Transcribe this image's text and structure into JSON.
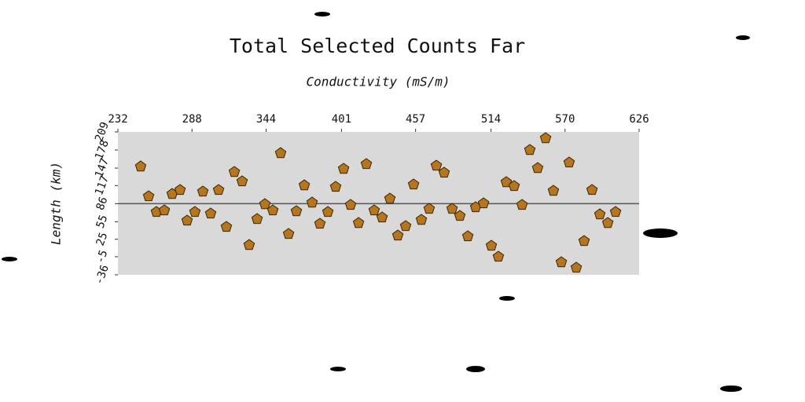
{
  "chart_data": {
    "type": "scatter",
    "title": "Total Selected Counts Far",
    "x_label": "Conductivity (mS/m)",
    "y_label": "Length (km)",
    "xlim": [
      232,
      626
    ],
    "xticks": [
      232,
      288,
      344,
      401,
      457,
      514,
      570,
      626
    ],
    "ylim": [
      -36,
      209
    ],
    "yticks": [
      -36,
      -5,
      25,
      55,
      86,
      117,
      147,
      178,
      209
    ],
    "hline": 86,
    "color": "#b5761f",
    "x": [
      249.2,
      255.2,
      261.1,
      267.1,
      273.0,
      279.0,
      284.3,
      290.2,
      296.2,
      302.1,
      308.1,
      314.0,
      320.0,
      325.9,
      331.2,
      337.2,
      343.1,
      349.1,
      355.0,
      361.0,
      366.9,
      372.9,
      378.8,
      384.7,
      390.7,
      396.6,
      402.6,
      407.9,
      413.9,
      419.8,
      425.7,
      431.7,
      437.6,
      443.6,
      449.5,
      455.5,
      461.4,
      467.3,
      472.7,
      478.6,
      484.6,
      490.5,
      496.5,
      502.4,
      508.4,
      514.3,
      519.6,
      525.6,
      531.5,
      537.5,
      543.4,
      549.3,
      555.3,
      561.2,
      567.2,
      573.1,
      578.5,
      584.4,
      590.4,
      596.3,
      602.3,
      608.2
    ],
    "values": [
      149.7,
      98.6,
      71.7,
      74.4,
      102.6,
      109.4,
      56.9,
      71.7,
      106.7,
      69.0,
      109.4,
      46.1,
      140.3,
      124.2,
      15.1,
      59.6,
      85.1,
      74.4,
      172.6,
      34.0,
      73.0,
      117.4,
      87.8,
      51.5,
      71.7,
      114.8,
      145.7,
      83.8,
      52.8,
      153.8,
      74.4,
      62.3,
      94.6,
      31.3,
      47.5,
      118.8,
      58.2,
      77.1,
      151.1,
      139.0,
      77.1,
      65.0,
      30.0,
      79.8,
      86.5,
      13.8,
      -5.0,
      122.8,
      116.1,
      83.8,
      178.0,
      147.0,
      198.2,
      108.0,
      -14.5,
      156.5,
      -23.9,
      21.9,
      109.4,
      67.6,
      52.8,
      71.7
    ]
  }
}
